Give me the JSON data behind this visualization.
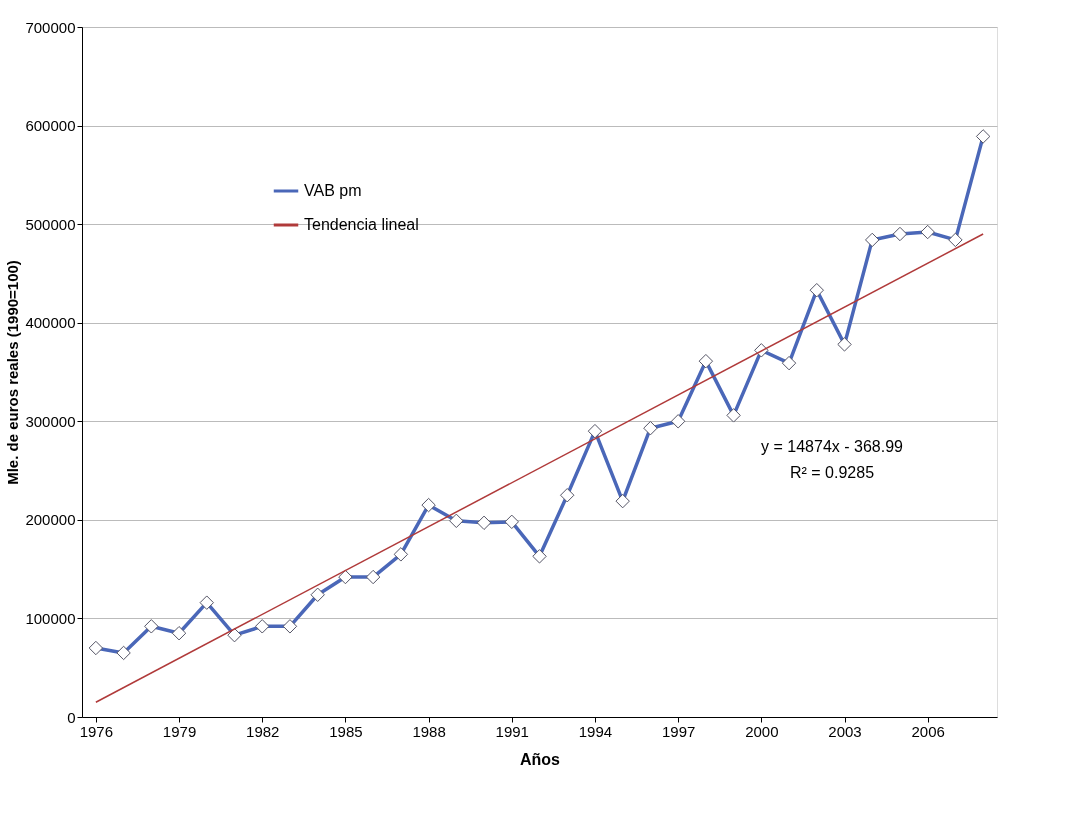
{
  "chart_data": {
    "type": "line",
    "xlabel": "Años",
    "ylabel": "Mle. de euros reales (1990=100)",
    "x": [
      1976,
      1977,
      1978,
      1979,
      1980,
      1981,
      1982,
      1983,
      1984,
      1985,
      1986,
      1987,
      1988,
      1989,
      1990,
      1991,
      1992,
      1993,
      1994,
      1995,
      1996,
      1997,
      1998,
      1999,
      2000,
      2001,
      2002,
      2003,
      2004,
      2005,
      2006,
      2007,
      2008
    ],
    "series": [
      {
        "name": "VAB pm",
        "color": "#4a67b8",
        "marker": "diamond",
        "values": [
          70000,
          65000,
          92000,
          85000,
          116000,
          83000,
          92000,
          92000,
          124000,
          142000,
          142000,
          165000,
          215000,
          199000,
          197000,
          198000,
          163000,
          225000,
          290000,
          219000,
          293000,
          300000,
          361000,
          306000,
          372000,
          359000,
          433000,
          378000,
          484000,
          490000,
          492000,
          484000,
          589000
        ]
      },
      {
        "name": "Tendencia lineal",
        "type": "line",
        "color": "#b03a3a",
        "marker": "none",
        "x": [
          1976,
          2008
        ],
        "values": [
          15000,
          490000
        ]
      }
    ],
    "xlim": [
      1975.5,
      2008.5
    ],
    "xticks": [
      1976,
      1979,
      1982,
      1985,
      1988,
      1991,
      1994,
      1997,
      2000,
      2003,
      2006
    ],
    "ylim": [
      0,
      700000
    ],
    "yticks": [
      0,
      100000,
      200000,
      300000,
      400000,
      500000,
      600000,
      700000
    ],
    "grid": "y",
    "legend": "top left",
    "line_style": "solid",
    "annotations": [
      "y = 14874x - 368.99",
      "R² = 0.9285"
    ]
  }
}
